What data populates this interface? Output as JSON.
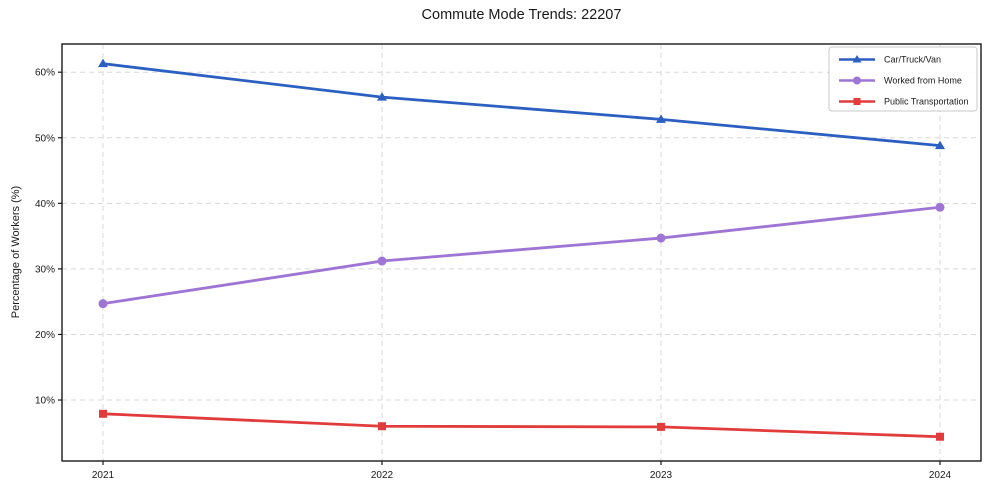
{
  "title": "Commute Mode Trends: 22207",
  "chart_data": {
    "type": "line",
    "title": "Commute Mode Trends: 22207",
    "xlabel": "",
    "ylabel": "Percentage of Workers (%)",
    "categories": [
      "2021",
      "2022",
      "2023",
      "2024"
    ],
    "series": [
      {
        "name": "Car/Truck/Van",
        "marker": "triangle",
        "color": "#2c5fc2",
        "values": [
          61.3,
          56.2,
          52.8,
          48.8
        ]
      },
      {
        "name": "Worked from Home",
        "marker": "circle",
        "color": "#9e75d4",
        "values": [
          24.7,
          31.2,
          34.7,
          39.4
        ]
      },
      {
        "name": "Public Transportation",
        "marker": "square",
        "color": "#e23b3c",
        "values": [
          7.9,
          6.0,
          5.9,
          4.4
        ]
      }
    ],
    "ylim": [
      0.7,
      64.3
    ],
    "yticks": [
      10,
      20,
      30,
      40,
      50,
      60
    ],
    "ytick_labels": [
      "10%",
      "20%",
      "30%",
      "40%",
      "50%",
      "60%"
    ],
    "grid": true,
    "grid_style": "dashed",
    "legend_position": "upper right",
    "colors": {
      "frame": "#1a1a1a",
      "gridline": "#d8d8d8",
      "legend_border": "#c9c9c9",
      "text": "#1a1a1a"
    }
  }
}
